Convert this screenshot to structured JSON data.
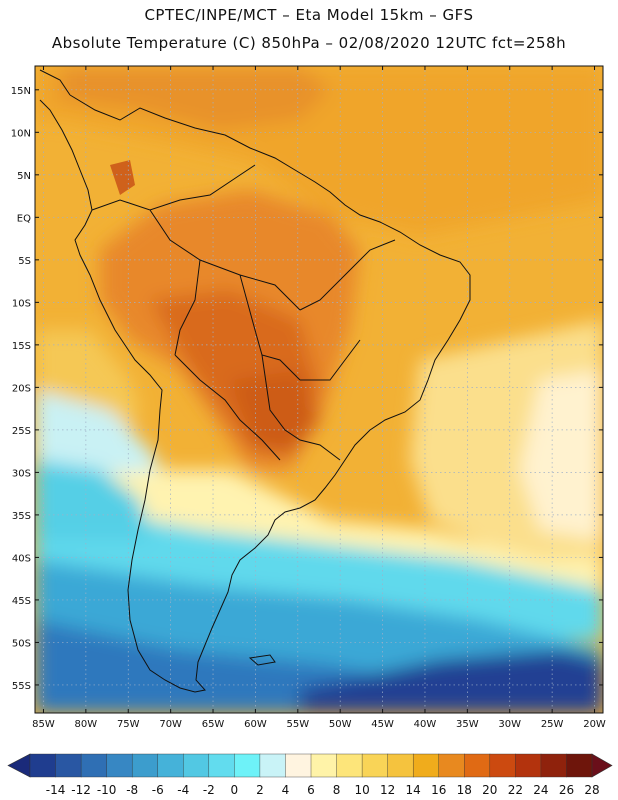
{
  "header": {
    "title_line1": "CPTEC/INPE/MCT –  Eta Model 15km – GFS",
    "title_line2": "Absolute Temperature (C) 850hPa – 02/08/2020 12UTC fct=258h"
  },
  "map": {
    "lat_labels": [
      "15N",
      "10N",
      "5N",
      "EQ",
      "5S",
      "10S",
      "15S",
      "20S",
      "25S",
      "30S",
      "35S",
      "40S",
      "45S",
      "50S",
      "55S"
    ],
    "lon_labels": [
      "85W",
      "80W",
      "75W",
      "70W",
      "65W",
      "60W",
      "55W",
      "50W",
      "45W",
      "40W",
      "35W",
      "30W",
      "25W",
      "20W"
    ]
  },
  "colorbar": {
    "labels": [
      "-14",
      "-12",
      "-10",
      "-8",
      "-6",
      "-4",
      "-2",
      "0",
      "2",
      "4",
      "6",
      "8",
      "10",
      "12",
      "14",
      "16",
      "18",
      "20",
      "22",
      "24",
      "26",
      "28"
    ],
    "colors": [
      "#1f3d8f",
      "#2957a3",
      "#2f6fb4",
      "#3787c3",
      "#3c9dcd",
      "#45b2d9",
      "#52c8e3",
      "#62dcee",
      "#6ef2f8",
      "#c9f3f7",
      "#fff4e0",
      "#fff3a8",
      "#fde57a",
      "#f9d457",
      "#f5c33e",
      "#f0ac1c",
      "#e8891f",
      "#e06a14",
      "#cc4a10",
      "#b3330d",
      "#8f220c",
      "#6e150b"
    ],
    "under_color": "#1a2a7a",
    "over_color": "#6a0f1a"
  }
}
